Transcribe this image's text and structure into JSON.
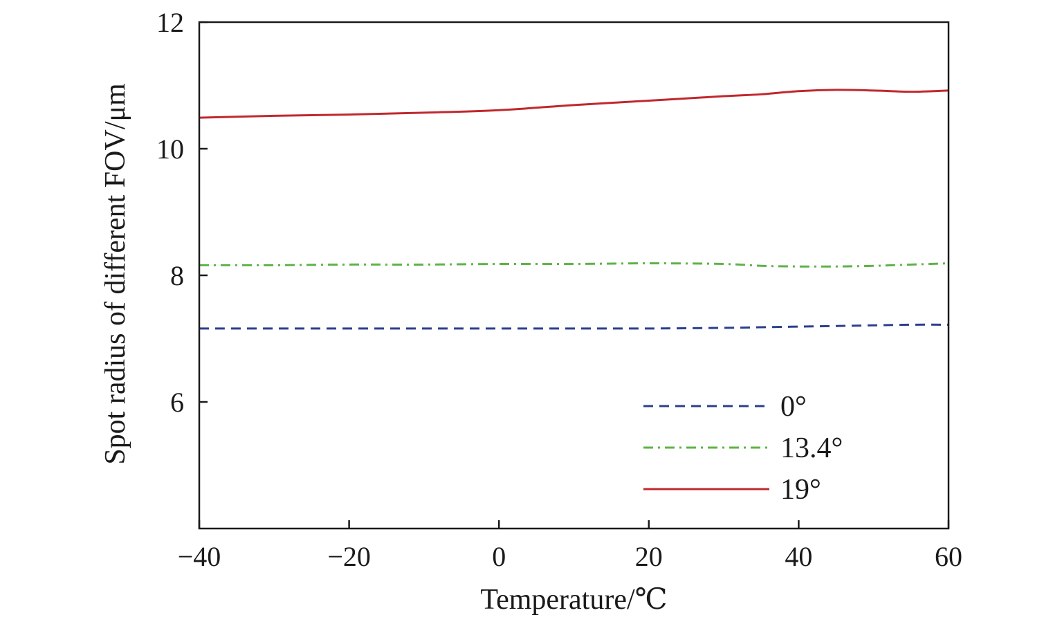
{
  "chart_data": {
    "type": "line",
    "xlabel": "Temperature/℃",
    "ylabel": "Spot radius of different FOV/μm",
    "xlim": [
      -40,
      60
    ],
    "ylim": [
      4,
      12
    ],
    "xticks": [
      -40,
      -20,
      0,
      20,
      40,
      60
    ],
    "xtick_labels": [
      "−40",
      "−20",
      "0",
      "20",
      "40",
      "60"
    ],
    "yticks": [
      6,
      8,
      10,
      12
    ],
    "ytick_labels": [
      "6",
      "8",
      "10",
      "12"
    ],
    "grid": false,
    "legend_position": "lower-right",
    "series": [
      {
        "name": "0°",
        "color": "#2b3f8c",
        "style": "dashed",
        "x": [
          -40,
          -30,
          -20,
          -10,
          0,
          10,
          20,
          30,
          35,
          40,
          45,
          50,
          55,
          60
        ],
        "y": [
          7.16,
          7.16,
          7.16,
          7.16,
          7.16,
          7.16,
          7.16,
          7.17,
          7.18,
          7.19,
          7.2,
          7.21,
          7.22,
          7.22
        ]
      },
      {
        "name": "13.4°",
        "color": "#5db346",
        "style": "dashdot",
        "x": [
          -40,
          -30,
          -20,
          -10,
          0,
          10,
          20,
          30,
          35,
          40,
          45,
          50,
          55,
          60
        ],
        "y": [
          8.16,
          8.16,
          8.17,
          8.17,
          8.18,
          8.18,
          8.19,
          8.18,
          8.15,
          8.14,
          8.14,
          8.15,
          8.17,
          8.19
        ]
      },
      {
        "name": "19°",
        "color": "#c0282d",
        "style": "solid",
        "x": [
          -40,
          -30,
          -20,
          -10,
          0,
          10,
          20,
          30,
          35,
          40,
          45,
          50,
          55,
          60
        ],
        "y": [
          10.49,
          10.52,
          10.54,
          10.57,
          10.61,
          10.69,
          10.76,
          10.83,
          10.86,
          10.91,
          10.93,
          10.92,
          10.9,
          10.92
        ]
      }
    ]
  }
}
